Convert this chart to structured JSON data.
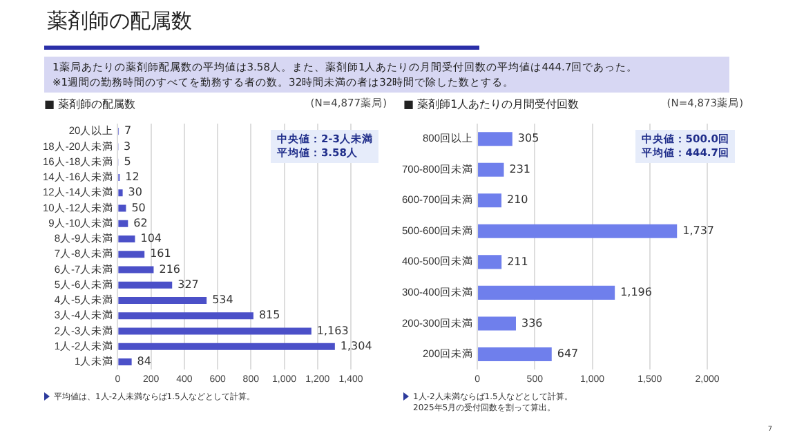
{
  "chart_data": [
    {
      "type": "other",
      "title": "薬剤師の配属数",
      "annotations": [
        "1薬局あたりの薬剤師配属数の平均値は3.58人。また、薬剤師1人あたりの月間受付回数の平均値は444.7回であった。",
        "※1週間の勤務時間のすべてを勤務する者の数。32時間未満の者は32時間で除した数とする。",
        "7"
      ]
    },
    {
      "type": "bar",
      "orientation": "horizontal",
      "title": "■ 薬剤師の配属数",
      "subtitle": "(N=4,877薬局)",
      "categories": [
        "20人以上",
        "18人-20人未満",
        "16人-18人未満",
        "14人-16人未満",
        "12人-14人未満",
        "10人-12人未満",
        "9人-10人未満",
        "8人-9人未満",
        "7人-8人未満",
        "6人-7人未満",
        "5人-6人未満",
        "4人-5人未満",
        "3人-4人未満",
        "2人-3人未満",
        "1人-2人未満",
        "1人未満"
      ],
      "values": [
        7,
        3,
        5,
        12,
        30,
        50,
        62,
        104,
        161,
        216,
        327,
        534,
        815,
        1163,
        1304,
        84
      ],
      "value_labels": [
        "7",
        "3",
        "5",
        "12",
        "30",
        "50",
        "62",
        "104",
        "161",
        "216",
        "327",
        "534",
        "815",
        "1,163",
        "1,304",
        "84"
      ],
      "color": "#4b50c8",
      "xlim": [
        0,
        1400
      ],
      "xticks": [
        0,
        200,
        400,
        600,
        800,
        {
          "value": 1000,
          "label": "1,000"
        },
        {
          "value": 1200,
          "label": "1,200"
        },
        {
          "value": 1400,
          "label": "1,400"
        }
      ],
      "grid": "x",
      "legend": false,
      "annotations": [
        "中央値：2-3人未満",
        "平均値：3.58人",
        "平均値は、1人-2人未満ならば1.5人などとして計算。"
      ]
    },
    {
      "type": "bar",
      "orientation": "horizontal",
      "title": "■ 薬剤師1人あたりの月間受付回数",
      "subtitle": "(N=4,873薬局)",
      "categories": [
        "800回以上",
        "700-800回未満",
        "600-700回未満",
        "500-600回未満",
        "400-500回未満",
        "300-400回未満",
        "200-300回未満",
        "200回未満"
      ],
      "values": [
        305,
        231,
        210,
        1737,
        211,
        1196,
        336,
        647
      ],
      "value_labels": [
        "305",
        "231",
        "210",
        "1,737",
        "211",
        "1,196",
        "336",
        "647"
      ],
      "color": "#6f7fec",
      "xlim": [
        0,
        2000
      ],
      "xticks": [
        0,
        500,
        {
          "value": 1000,
          "label": "1,000"
        },
        {
          "value": 1500,
          "label": "1,500"
        },
        {
          "value": 2000,
          "label": "2,000"
        }
      ],
      "grid": "x",
      "legend": false,
      "annotations": [
        "中央値：500.0回",
        "平均値：444.7回",
        "1人-2人未満ならば1.5人などとして計算。",
        "2025年5月の受付回数を割って算出。"
      ]
    }
  ]
}
